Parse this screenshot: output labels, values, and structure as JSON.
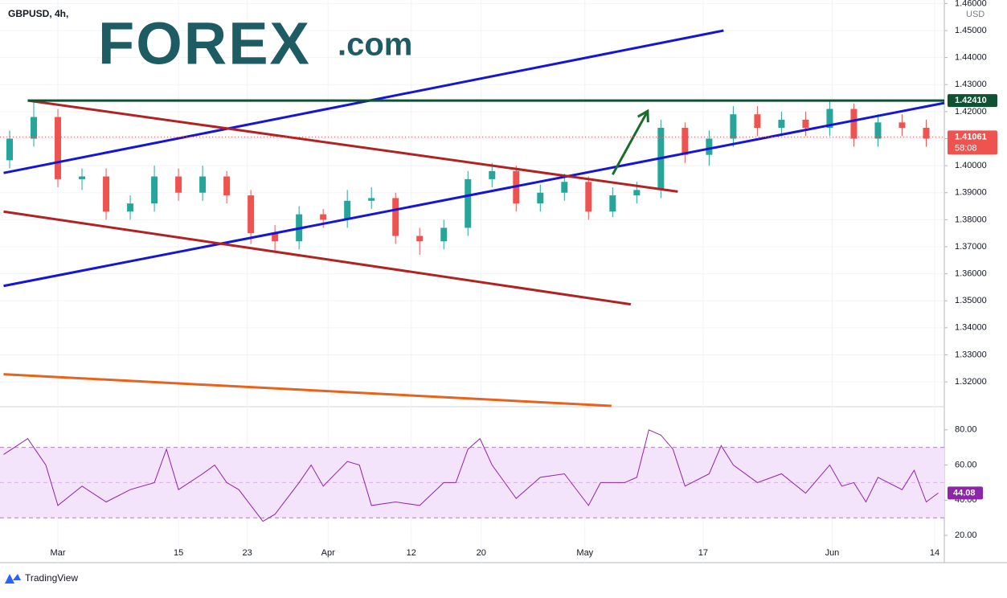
{
  "symbol": "GBPUSD, 4h,",
  "logo": {
    "brand": "FOREX",
    "suffix": ".com"
  },
  "footer": "TradingView",
  "chart_data": [
    {
      "type": "candlestick",
      "currency": "USD",
      "up_color": "#26a69a",
      "down_color": "#ef5350",
      "grid": true,
      "xlim": [
        -4.8,
        73.5
      ],
      "xticks": [
        {
          "value": 0,
          "label": "Mar"
        },
        {
          "value": 10,
          "label": "15"
        },
        {
          "value": 15.7,
          "label": "23"
        },
        {
          "value": 22.4,
          "label": "Apr"
        },
        {
          "value": 29.3,
          "label": "12"
        },
        {
          "value": 35.1,
          "label": "20"
        },
        {
          "value": 43.7,
          "label": "May"
        },
        {
          "value": 53.5,
          "label": "17"
        },
        {
          "value": 64.2,
          "label": "Jun"
        },
        {
          "value": 72.7,
          "label": "14"
        }
      ],
      "ylim": [
        1.3111,
        1.4613
      ],
      "yticks": [
        {
          "value": 1.32,
          "label": "1.32000"
        },
        {
          "value": 1.33,
          "label": "1.33000"
        },
        {
          "value": 1.34,
          "label": "1.34000"
        },
        {
          "value": 1.35,
          "label": "1.35000"
        },
        {
          "value": 1.36,
          "label": "1.36000"
        },
        {
          "value": 1.37,
          "label": "1.37000"
        },
        {
          "value": 1.38,
          "label": "1.38000"
        },
        {
          "value": 1.39,
          "label": "1.39000"
        },
        {
          "value": 1.4,
          "label": "1.40000"
        },
        {
          "value": 1.41,
          "label": "1.41000"
        },
        {
          "value": 1.42,
          "label": "1.42000"
        },
        {
          "value": 1.43,
          "label": "1.43000"
        },
        {
          "value": 1.44,
          "label": "1.44000"
        },
        {
          "value": 1.45,
          "label": "1.45000"
        },
        {
          "value": 1.46,
          "label": "1.46000"
        }
      ],
      "x": [
        -4,
        -2,
        0,
        2,
        4,
        6,
        8,
        10,
        12,
        14,
        16,
        18,
        20,
        22,
        24,
        26,
        28,
        30,
        32,
        34,
        36,
        38,
        40,
        42,
        44,
        46,
        48,
        50,
        52,
        54,
        56,
        58,
        60,
        62,
        64,
        66,
        68,
        70,
        72
      ],
      "open": [
        1.402,
        1.41,
        1.418,
        1.395,
        1.396,
        1.383,
        1.386,
        1.396,
        1.39,
        1.396,
        1.389,
        1.375,
        1.372,
        1.382,
        1.38,
        1.387,
        1.388,
        1.374,
        1.372,
        1.377,
        1.395,
        1.398,
        1.386,
        1.39,
        1.394,
        1.383,
        1.389,
        1.391,
        1.414,
        1.404,
        1.41,
        1.419,
        1.414,
        1.417,
        1.414,
        1.421,
        1.41,
        1.416,
        1.414
      ],
      "high": [
        1.413,
        1.424,
        1.421,
        1.399,
        1.399,
        1.389,
        1.4,
        1.399,
        1.4,
        1.398,
        1.391,
        1.378,
        1.385,
        1.384,
        1.391,
        1.392,
        1.39,
        1.377,
        1.38,
        1.398,
        1.401,
        1.4,
        1.393,
        1.397,
        1.396,
        1.392,
        1.394,
        1.417,
        1.416,
        1.413,
        1.422,
        1.422,
        1.42,
        1.42,
        1.424,
        1.423,
        1.419,
        1.419,
        1.417
      ],
      "low": [
        1.399,
        1.407,
        1.392,
        1.391,
        1.38,
        1.38,
        1.383,
        1.387,
        1.387,
        1.386,
        1.371,
        1.368,
        1.369,
        1.377,
        1.377,
        1.384,
        1.371,
        1.367,
        1.369,
        1.374,
        1.392,
        1.383,
        1.383,
        1.387,
        1.38,
        1.381,
        1.386,
        1.388,
        1.401,
        1.4,
        1.407,
        1.411,
        1.411,
        1.411,
        1.411,
        1.407,
        1.407,
        1.411,
        1.407
      ],
      "close": [
        1.41,
        1.418,
        1.395,
        1.396,
        1.383,
        1.386,
        1.396,
        1.39,
        1.396,
        1.389,
        1.375,
        1.372,
        1.382,
        1.38,
        1.387,
        1.388,
        1.374,
        1.372,
        1.377,
        1.395,
        1.398,
        1.386,
        1.39,
        1.394,
        1.383,
        1.389,
        1.391,
        1.414,
        1.404,
        1.41,
        1.419,
        1.414,
        1.417,
        1.414,
        1.421,
        1.41,
        1.416,
        1.414,
        1.41
      ],
      "lines": [
        {
          "color": "#1515d6",
          "x": [
            -4.5,
            55.2
          ],
          "y": [
            1.3973,
            1.45
          ]
        },
        {
          "color": "#1515d6",
          "x": [
            -4.5,
            73.5
          ],
          "y": [
            1.3555,
            1.4232
          ]
        },
        {
          "color": "#b22222",
          "x": [
            -2.5,
            51.4
          ],
          "y": [
            1.4241,
            1.3904
          ]
        },
        {
          "color": "#b22222",
          "x": [
            -4.5,
            47.5
          ],
          "y": [
            1.383,
            1.3487
          ]
        },
        {
          "color": "#e8621c",
          "x": [
            -4.5,
            45.9
          ],
          "y": [
            1.3228,
            1.3111
          ]
        },
        {
          "color": "#0f5132",
          "x": [
            -2.5,
            73.5
          ],
          "y": [
            1.4241,
            1.4241
          ]
        },
        {
          "color": "#1b6b2d",
          "x": [
            46,
            48.9
          ],
          "y": [
            1.3967,
            1.4202
          ],
          "arrow": true
        }
      ],
      "annotations": [
        {
          "value": 1.4241,
          "label": "1.42410",
          "color": "#0f5132"
        },
        {
          "value": 1.41061,
          "label": "1.41061",
          "sub": "58:08",
          "color": "#ef5350",
          "dotted": true
        }
      ]
    },
    {
      "type": "line",
      "color": "#8e24aa",
      "band": [
        30,
        70
      ],
      "midline": 50,
      "band_color": "#f3e3fb",
      "xlim": [
        -4.8,
        73.5
      ],
      "ylim": [
        4.5,
        92.7
      ],
      "yticks": [
        {
          "value": 20,
          "label": "20.00"
        },
        {
          "value": 40,
          "label": "40.00"
        },
        {
          "value": 60,
          "label": "60.00"
        },
        {
          "value": 80,
          "label": "80.00"
        }
      ],
      "x": [
        -4.5,
        -2.5,
        -1,
        0,
        2,
        4,
        6,
        8,
        9,
        10,
        12,
        13,
        14,
        15,
        17,
        18,
        20,
        21,
        22,
        24,
        25,
        26,
        28,
        30,
        32,
        33,
        34,
        35,
        36,
        38,
        40,
        42,
        44,
        45,
        47,
        48,
        49,
        50,
        51,
        52,
        54,
        55,
        56,
        58,
        60,
        62,
        64,
        65,
        66,
        67,
        68,
        70,
        71,
        72,
        73
      ],
      "values": [
        66,
        75,
        60,
        37,
        48,
        39,
        46,
        50,
        69,
        46,
        55,
        60,
        50,
        46,
        28,
        32,
        50,
        60,
        48,
        62,
        60,
        37,
        39,
        37,
        50,
        50,
        69,
        75,
        60,
        41,
        53,
        55,
        37,
        50,
        50,
        53,
        80,
        77,
        69,
        48,
        55,
        71,
        60,
        50,
        55,
        44,
        60,
        48,
        50,
        39,
        53,
        46,
        57,
        39,
        44.08
      ],
      "last": {
        "value": 44.08,
        "label": "44.08"
      }
    }
  ]
}
